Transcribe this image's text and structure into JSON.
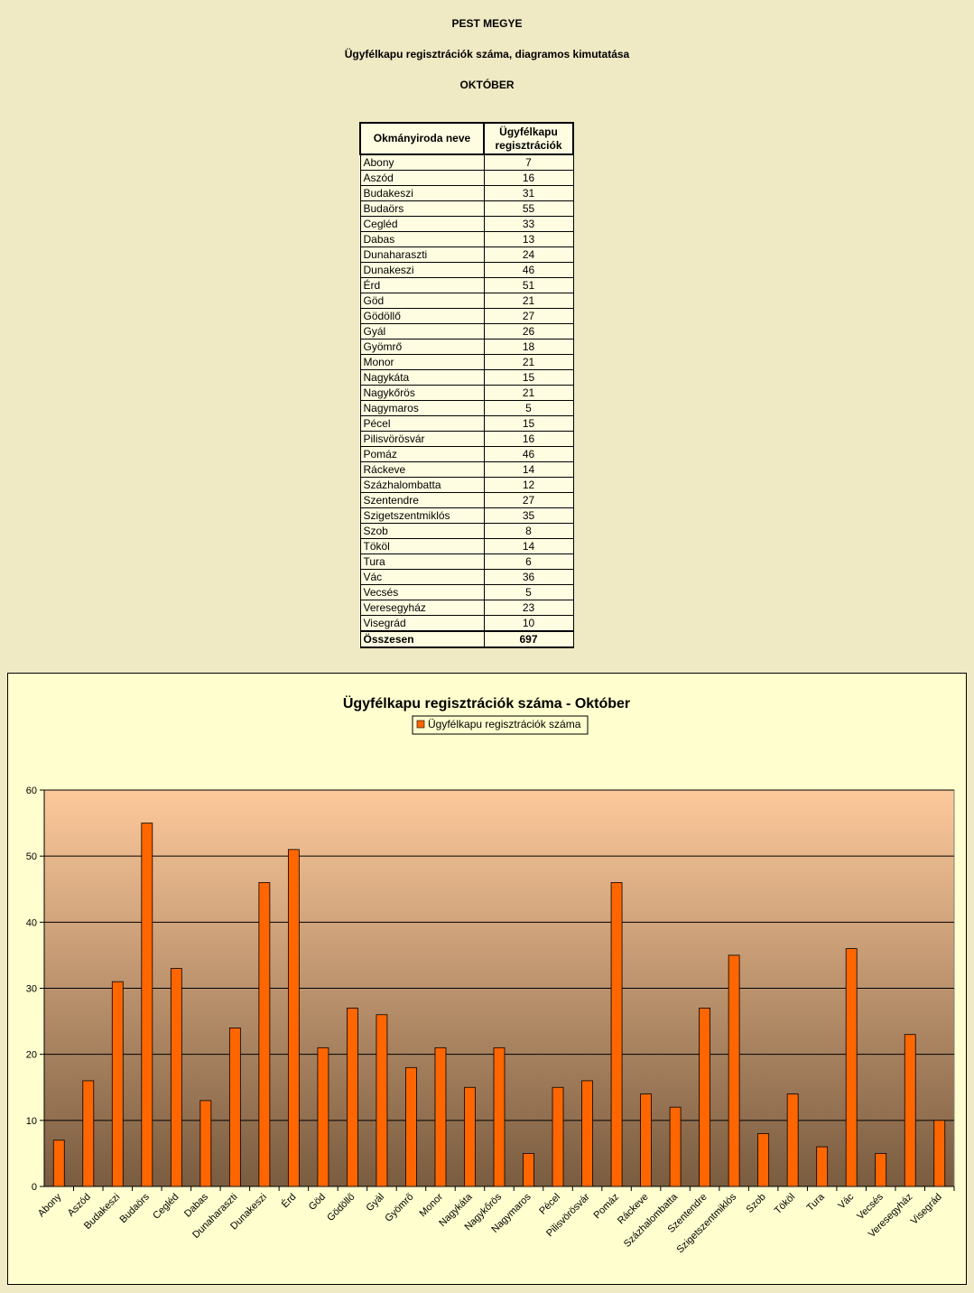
{
  "header": {
    "county": "PEST MEGYE",
    "subtitle": "Ügyfélkapu regisztrációk száma, diagramos kimutatása",
    "month": "OKTÓBER"
  },
  "table": {
    "col1": "Okmányiroda neve",
    "col2_line1": "Ügyfélkapu",
    "col2_line2": "regisztrációk",
    "rows": [
      {
        "name": "Abony",
        "value": "7"
      },
      {
        "name": "Aszód",
        "value": "16"
      },
      {
        "name": "Budakeszi",
        "value": "31"
      },
      {
        "name": "Budaörs",
        "value": "55"
      },
      {
        "name": "Cegléd",
        "value": "33"
      },
      {
        "name": "Dabas",
        "value": "13"
      },
      {
        "name": "Dunaharaszti",
        "value": "24"
      },
      {
        "name": "Dunakeszi",
        "value": "46"
      },
      {
        "name": "Érd",
        "value": "51"
      },
      {
        "name": "Göd",
        "value": "21"
      },
      {
        "name": "Gödöllő",
        "value": "27"
      },
      {
        "name": "Gyál",
        "value": "26"
      },
      {
        "name": "Gyömrő",
        "value": "18"
      },
      {
        "name": "Monor",
        "value": "21"
      },
      {
        "name": "Nagykáta",
        "value": "15"
      },
      {
        "name": "Nagykőrös",
        "value": "21"
      },
      {
        "name": "Nagymaros",
        "value": "5"
      },
      {
        "name": "Pécel",
        "value": "15"
      },
      {
        "name": "Pilisvörösvár",
        "value": "16"
      },
      {
        "name": "Pomáz",
        "value": "46"
      },
      {
        "name": "Ráckeve",
        "value": "14"
      },
      {
        "name": "Százhalombatta",
        "value": "12"
      },
      {
        "name": "Szentendre",
        "value": "27"
      },
      {
        "name": "Szigetszentmiklós",
        "value": "35"
      },
      {
        "name": "Szob",
        "value": "8"
      },
      {
        "name": "Tököl",
        "value": "14"
      },
      {
        "name": "Tura",
        "value": "6"
      },
      {
        "name": "Vác",
        "value": "36"
      },
      {
        "name": "Vecsés",
        "value": "5"
      },
      {
        "name": "Veresegyház",
        "value": "23"
      },
      {
        "name": "Visegrád",
        "value": "10"
      }
    ],
    "total_label": "Összesen",
    "total_value": "697"
  },
  "colors": {
    "bar": "#ff6600",
    "plot_top": "#fdc99b",
    "plot_bottom": "#7a5c40",
    "chart_bg": "#fefece",
    "page_bg": "#efe9c4"
  },
  "chart_data": {
    "type": "bar",
    "title": "Ügyfélkapu regisztrációk száma - Október",
    "legend_position": "top",
    "grid": true,
    "ylim": [
      0,
      60
    ],
    "yticks": [
      0,
      10,
      20,
      30,
      40,
      50,
      60
    ],
    "categories": [
      "Abony",
      "Aszód",
      "Budakeszi",
      "Budaörs",
      "Cegléd",
      "Dabas",
      "Dunaharaszti",
      "Dunakeszi",
      "Érd",
      "Göd",
      "Gödöllő",
      "Gyál",
      "Gyömrő",
      "Monor",
      "Nagykáta",
      "Nagykőrös",
      "Nagymaros",
      "Pécel",
      "Pilisvörösvár",
      "Pomáz",
      "Ráckeve",
      "Százhalombatta",
      "Szentendre",
      "Szigetszentmiklós",
      "Szob",
      "Tököl",
      "Tura",
      "Vác",
      "Vecsés",
      "Veresegyház",
      "Visegrád"
    ],
    "series": [
      {
        "name": "Ügyfélkapu regisztrációk száma",
        "values": [
          7,
          16,
          31,
          55,
          33,
          13,
          24,
          46,
          51,
          21,
          27,
          26,
          18,
          21,
          15,
          21,
          5,
          15,
          16,
          46,
          14,
          12,
          27,
          35,
          8,
          14,
          6,
          36,
          5,
          23,
          10
        ]
      }
    ]
  }
}
